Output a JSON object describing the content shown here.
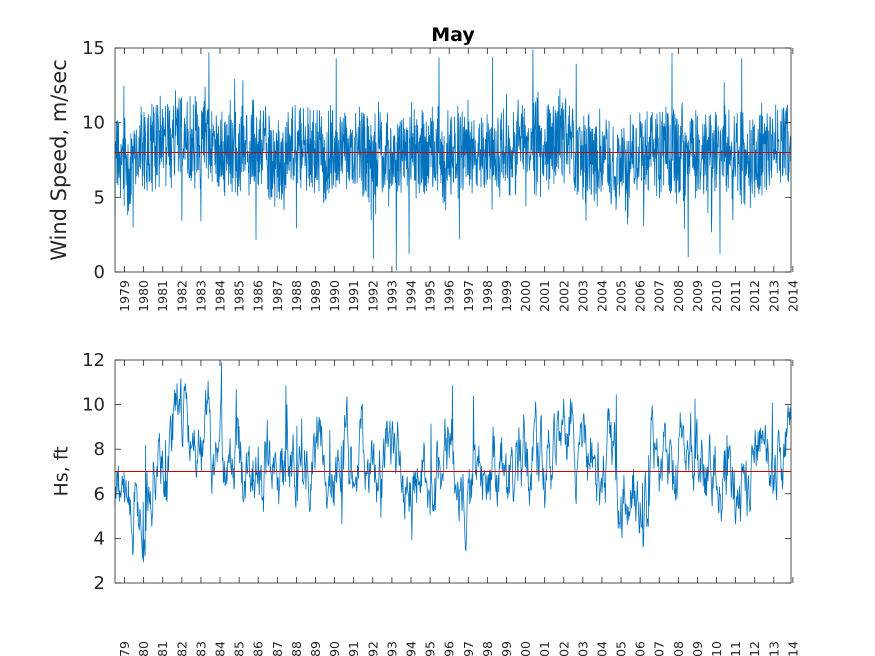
{
  "chart_data": [
    {
      "type": "line",
      "title": "May",
      "xlabel": "",
      "ylabel": "Wind Speed, m/sec",
      "ylim": [
        0,
        15
      ],
      "yticks": [
        0,
        5,
        10,
        15
      ],
      "xlim": [
        1979,
        2014.4
      ],
      "xtick_labels": [
        "1979",
        "1980",
        "1981",
        "1982",
        "1983",
        "1984",
        "1985",
        "1986",
        "1987",
        "1988",
        "1989",
        "1990",
        "1991",
        "1992",
        "1993",
        "1994",
        "1995",
        "1996",
        "1997",
        "1998",
        "1999",
        "2000",
        "2001",
        "2002",
        "2003",
        "2004",
        "2005",
        "2006",
        "2007",
        "2008",
        "2009",
        "2010",
        "2011",
        "2012",
        "2013",
        "2014"
      ],
      "grid": false,
      "colors": {
        "series": "#0072BD",
        "mean": "#D00000"
      },
      "series": [
        {
          "values_per_year": [
            7.2,
            8.1,
            8.6,
            8.8,
            8.9,
            8.4,
            8.0,
            8.2,
            7.3,
            8.3,
            8.1,
            8.0,
            8.2,
            7.4,
            7.6,
            8.1,
            8.0,
            7.8,
            8.0,
            8.1,
            8.0,
            8.5,
            8.4,
            8.9,
            8.0,
            7.8,
            7.2,
            8.1,
            8.3,
            8.0,
            7.9,
            8.2,
            7.6,
            7.9,
            8.2,
            9.0
          ]
        }
      ],
      "reference_line": {
        "y": 8.0
      }
    },
    {
      "type": "line",
      "title": "",
      "xlabel": "",
      "ylabel": "Hs, ft",
      "ylim": [
        2,
        12
      ],
      "yticks": [
        2,
        4,
        6,
        8,
        10,
        12
      ],
      "xlim": [
        1979,
        2014.4
      ],
      "xtick_labels": [
        "79",
        "80",
        "81",
        "82",
        "83",
        "84",
        "85",
        "86",
        "87",
        "88",
        "89",
        "90",
        "91",
        "92",
        "93",
        "94",
        "95",
        "96",
        "97",
        "98",
        "99",
        "00",
        "01",
        "02",
        "03",
        "04",
        "05",
        "06",
        "07",
        "08",
        "09",
        "10",
        "11",
        "12",
        "13",
        "14"
      ],
      "grid": false,
      "colors": {
        "series": "#0072BD",
        "mean": "#D00000"
      },
      "series": [
        {
          "values_per_year": [
            5.6,
            6.6,
            7.8,
            8.6,
            8.2,
            7.5,
            7.1,
            7.0,
            6.2,
            8.3,
            7.2,
            7.0,
            7.4,
            6.3,
            6.5,
            6.9,
            6.8,
            7.0,
            6.6,
            6.9,
            6.4,
            7.5,
            7.6,
            7.8,
            7.3,
            6.9,
            6.0,
            6.5,
            7.3,
            7.6,
            7.1,
            7.3,
            6.2,
            6.8,
            7.0,
            8.6
          ]
        }
      ],
      "reference_line": {
        "y": 7.0
      }
    }
  ]
}
